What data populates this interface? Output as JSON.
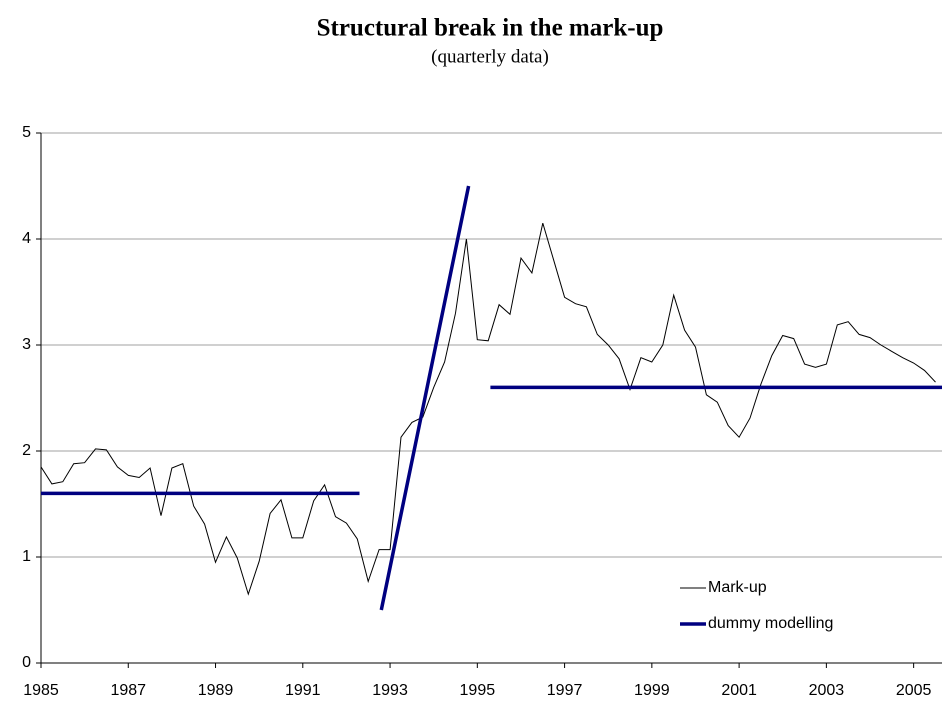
{
  "chart_data": {
    "type": "line",
    "title": "Structural break in the mark-up",
    "subtitle": "(quarterly data)",
    "xlim": [
      1985,
      2005.65
    ],
    "xticks": [
      1985,
      1987,
      1989,
      1991,
      1993,
      1995,
      1997,
      1999,
      2001,
      2003,
      2005
    ],
    "ylim": [
      0,
      5
    ],
    "yticks": [
      0,
      1,
      2,
      3,
      4,
      5
    ],
    "grid": true,
    "legend": "lower right",
    "series": [
      {
        "name": "Mark-up",
        "color": "#000000",
        "x": [
          1985,
          1985.25,
          1985.5,
          1985.75,
          1986,
          1986.25,
          1986.5,
          1986.75,
          1987,
          1987.25,
          1987.5,
          1987.75,
          1988,
          1988.25,
          1988.5,
          1988.75,
          1989,
          1989.25,
          1989.5,
          1989.75,
          1990,
          1990.25,
          1990.5,
          1990.75,
          1991,
          1991.25,
          1991.5,
          1991.75,
          1992,
          1992.25,
          1992.5,
          1992.75,
          1993,
          1993.25,
          1993.5,
          1993.75,
          1994,
          1994.25,
          1994.5,
          1994.75,
          1995,
          1995.25,
          1995.5,
          1995.75,
          1996,
          1996.25,
          1996.5,
          1996.75,
          1997,
          1997.25,
          1997.5,
          1997.75,
          1998,
          1998.25,
          1998.5,
          1998.75,
          1999,
          1999.25,
          1999.5,
          1999.75,
          2000,
          2000.25,
          2000.5,
          2000.75,
          2001,
          2001.25,
          2001.5,
          2001.75,
          2002,
          2002.25,
          2002.5,
          2002.75,
          2003,
          2003.25,
          2003.5,
          2003.75,
          2004,
          2004.25,
          2004.5,
          2004.75,
          2005,
          2005.25,
          2005.5
        ],
        "values": [
          1.85,
          1.69,
          1.71,
          1.88,
          1.89,
          2.02,
          2.01,
          1.85,
          1.77,
          1.75,
          1.84,
          1.39,
          1.84,
          1.88,
          1.48,
          1.31,
          0.95,
          1.19,
          0.99,
          0.65,
          0.96,
          1.41,
          1.54,
          1.18,
          1.18,
          1.53,
          1.68,
          1.38,
          1.32,
          1.17,
          0.77,
          1.07,
          1.07,
          2.13,
          2.27,
          2.32,
          2.6,
          2.84,
          3.3,
          4.0,
          3.05,
          3.04,
          3.38,
          3.29,
          3.82,
          3.68,
          4.15,
          3.8,
          3.45,
          3.39,
          3.36,
          3.1,
          3.0,
          2.87,
          2.58,
          2.88,
          2.84,
          3.0,
          3.47,
          3.14,
          2.98,
          2.53,
          2.46,
          2.24,
          2.13,
          2.31,
          2.63,
          2.9,
          3.09,
          3.06,
          2.82,
          2.79,
          2.82,
          3.19,
          3.22,
          3.1,
          3.07,
          3.0,
          2.94,
          2.88,
          2.83,
          2.76,
          2.65
        ]
      },
      {
        "name": "dummy modelling",
        "color": "#000080",
        "x": [
          1985,
          1992.3,
          1992.5,
          1992.8,
          1994.8,
          1995,
          1995.3,
          2005.65
        ],
        "values": [
          1.6,
          1.6,
          null,
          0.5,
          4.5,
          null,
          2.6,
          2.6
        ]
      }
    ]
  }
}
